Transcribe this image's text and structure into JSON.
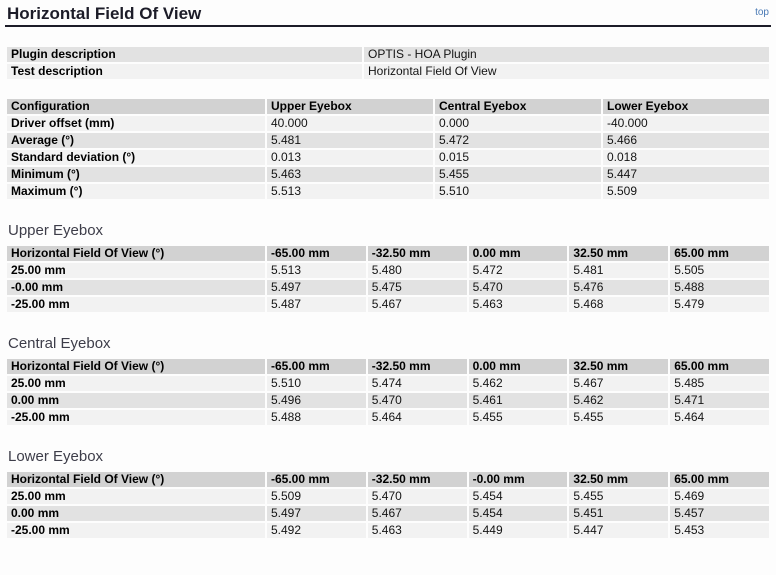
{
  "page": {
    "title": "Horizontal Field Of View",
    "top_link": "top"
  },
  "description_table": {
    "rows": [
      {
        "label": "Plugin description",
        "value": "OPTIS - HOA Plugin"
      },
      {
        "label": "Test description",
        "value": "Horizontal Field Of View"
      }
    ]
  },
  "summary_table": {
    "headers": [
      "Configuration",
      "Upper Eyebox",
      "Central Eyebox",
      "Lower Eyebox"
    ],
    "rows": [
      {
        "label": "Driver offset (mm)",
        "values": [
          "40.000",
          "0.000",
          "-40.000"
        ]
      },
      {
        "label": "Average (°)",
        "values": [
          "5.481",
          "5.472",
          "5.466"
        ]
      },
      {
        "label": "Standard deviation (°)",
        "values": [
          "0.013",
          "0.015",
          "0.018"
        ]
      },
      {
        "label": "Minimum (°)",
        "values": [
          "5.463",
          "5.455",
          "5.447"
        ]
      },
      {
        "label": "Maximum (°)",
        "values": [
          "5.513",
          "5.510",
          "5.509"
        ]
      }
    ]
  },
  "sections": [
    {
      "heading": "Upper Eyebox",
      "table": {
        "headers": [
          "Horizontal Field Of View (°)",
          "-65.00 mm",
          "-32.50 mm",
          "0.00 mm",
          "32.50 mm",
          "65.00 mm"
        ],
        "rows": [
          {
            "label": "25.00 mm",
            "values": [
              "5.513",
              "5.480",
              "5.472",
              "5.481",
              "5.505"
            ]
          },
          {
            "label": "-0.00 mm",
            "values": [
              "5.497",
              "5.475",
              "5.470",
              "5.476",
              "5.488"
            ]
          },
          {
            "label": "-25.00 mm",
            "values": [
              "5.487",
              "5.467",
              "5.463",
              "5.468",
              "5.479"
            ]
          }
        ]
      }
    },
    {
      "heading": "Central Eyebox",
      "table": {
        "headers": [
          "Horizontal Field Of View (°)",
          "-65.00 mm",
          "-32.50 mm",
          "0.00 mm",
          "32.50 mm",
          "65.00 mm"
        ],
        "rows": [
          {
            "label": "25.00 mm",
            "values": [
              "5.510",
              "5.474",
              "5.462",
              "5.467",
              "5.485"
            ]
          },
          {
            "label": "0.00 mm",
            "values": [
              "5.496",
              "5.470",
              "5.461",
              "5.462",
              "5.471"
            ]
          },
          {
            "label": "-25.00 mm",
            "values": [
              "5.488",
              "5.464",
              "5.455",
              "5.455",
              "5.464"
            ]
          }
        ]
      }
    },
    {
      "heading": "Lower Eyebox",
      "table": {
        "headers": [
          "Horizontal Field Of View (°)",
          "-65.00 mm",
          "-32.50 mm",
          "-0.00 mm",
          "32.50 mm",
          "65.00 mm"
        ],
        "rows": [
          {
            "label": "25.00 mm",
            "values": [
              "5.509",
              "5.470",
              "5.454",
              "5.455",
              "5.469"
            ]
          },
          {
            "label": "0.00 mm",
            "values": [
              "5.497",
              "5.467",
              "5.454",
              "5.451",
              "5.457"
            ]
          },
          {
            "label": "-25.00 mm",
            "values": [
              "5.492",
              "5.463",
              "5.449",
              "5.447",
              "5.453"
            ]
          }
        ]
      }
    }
  ],
  "colors": {
    "header_row_bg": "#d2d2d2",
    "row_light_bg": "#f2f2f2",
    "row_dark_bg": "#e2e2e2",
    "link_blue": "#4a7ab5",
    "title_color": "#1c1c28"
  }
}
